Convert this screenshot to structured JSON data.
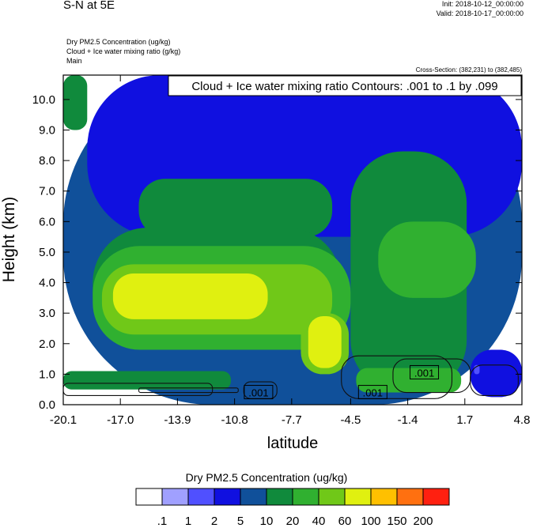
{
  "header": {
    "title": "S-N at 5E",
    "init": "Init: 2018-10-12_00:00:00",
    "valid": "Valid: 2018-10-17_00:00:00",
    "fields": [
      "Dry PM2.5 Concentration   (ug/kg)",
      "Cloud + Ice water mixing ratio   (g/kg)",
      "Main"
    ],
    "cross_section": "Cross-Section: (382,231) to (382,485)"
  },
  "chart_data": {
    "type": "heatmap",
    "xlabel": "latitude",
    "ylabel": "Height (km)",
    "xlim": [
      -20.1,
      4.8
    ],
    "ylim": [
      0.0,
      10.8
    ],
    "x_ticks": [
      -20.1,
      -17.0,
      -13.9,
      -10.8,
      -7.7,
      -4.5,
      -1.4,
      1.7,
      4.8
    ],
    "x_tick_labels": [
      "-20.1",
      "-17.0",
      "-13.9",
      "-10.8",
      "-7.7",
      "-4.5",
      "-1.4",
      "1.7",
      "4.8"
    ],
    "y_ticks": [
      0,
      1,
      2,
      3,
      4,
      5,
      6,
      7,
      8,
      9,
      10
    ],
    "y_tick_labels": [
      "0.0",
      "1.0",
      "2.0",
      "3.0",
      "4.0",
      "5.0",
      "6.0",
      "7.0",
      "8.0",
      "9.0",
      "10.0"
    ],
    "contour_info": "Cloud + Ice water mixing ratio Contours: .001 to .1 by .099",
    "contour_labels": [
      {
        "label": ".001",
        "x": -9.5,
        "y": 0.4
      },
      {
        "label": ".001",
        "x": -3.3,
        "y": 0.4
      },
      {
        "label": ".001",
        "x": -0.5,
        "y": 1.05
      }
    ],
    "legend": {
      "title": "Dry PM2.5 Concentration  (ug/kg)",
      "levels": [
        ".1",
        "1",
        "2",
        "5",
        "10",
        "20",
        "40",
        "60",
        "100",
        "150",
        "200"
      ],
      "colors": [
        "#ffffff",
        "#a0a0ff",
        "#5050ff",
        "#1010e0",
        "#10509a",
        "#108a3c",
        "#30b030",
        "#70c818",
        "#e0f010",
        "#ffc000",
        "#ff7010",
        "#ff2010"
      ]
    },
    "regions": [
      {
        "level": 4,
        "x0": -20.1,
        "x1": 4.8,
        "y0": 0.0,
        "y1": 10.8
      },
      {
        "level": 3,
        "x0": -18.8,
        "x1": 4.8,
        "y0": 5.5,
        "y1": 10.8
      },
      {
        "level": 5,
        "x0": -16.0,
        "x1": -5.5,
        "y0": 5.5,
        "y1": 7.4
      },
      {
        "level": 5,
        "x0": -20.1,
        "x1": -18.8,
        "y0": 9.0,
        "y1": 10.8
      },
      {
        "level": 5,
        "x0": -4.5,
        "x1": 1.8,
        "y0": 0.4,
        "y1": 8.3
      },
      {
        "level": 5,
        "x0": -18.5,
        "x1": -5.0,
        "y0": 1.8,
        "y1": 5.8
      },
      {
        "level": 6,
        "x0": -18.5,
        "x1": -4.5,
        "y0": 1.8,
        "y1": 5.2
      },
      {
        "level": 6,
        "x0": -3.0,
        "x1": 2.3,
        "y0": 3.5,
        "y1": 6.0
      },
      {
        "level": 6,
        "x0": -4.2,
        "x1": 1.5,
        "y0": 0.4,
        "y1": 1.2
      },
      {
        "level": 7,
        "x0": -18.0,
        "x1": -5.5,
        "y0": 2.3,
        "y1": 4.6
      },
      {
        "level": 7,
        "x0": -7.2,
        "x1": -4.6,
        "y0": 1.0,
        "y1": 3.0
      },
      {
        "level": 8,
        "x0": -17.4,
        "x1": -9.0,
        "y0": 2.8,
        "y1": 4.3
      },
      {
        "level": 8,
        "x0": -6.8,
        "x1": -5.0,
        "y0": 1.2,
        "y1": 2.9
      },
      {
        "level": 5,
        "x0": -20.1,
        "x1": -11.0,
        "y0": 0.5,
        "y1": 1.1
      },
      {
        "level": 3,
        "x0": 2.0,
        "x1": 4.8,
        "y0": 0.25,
        "y1": 1.8
      },
      {
        "level": 2,
        "x0": 2.2,
        "x1": 2.5,
        "y0": 1.0,
        "y1": 1.3
      }
    ],
    "contours": [
      {
        "x0": -20.1,
        "x1": -12.0,
        "y0": 0.3,
        "y1": 0.7
      },
      {
        "x0": -16.0,
        "x1": -10.6,
        "y0": 0.4,
        "y1": 0.55
      },
      {
        "x0": -10.3,
        "x1": -8.5,
        "y0": 0.2,
        "y1": 0.75
      },
      {
        "x0": -5.0,
        "x1": 1.0,
        "y0": 0.2,
        "y1": 1.6
      },
      {
        "x0": -2.2,
        "x1": 2.0,
        "y0": 0.4,
        "y1": 1.5
      },
      {
        "x0": 2.0,
        "x1": 4.6,
        "y0": 0.3,
        "y1": 1.3
      }
    ]
  }
}
